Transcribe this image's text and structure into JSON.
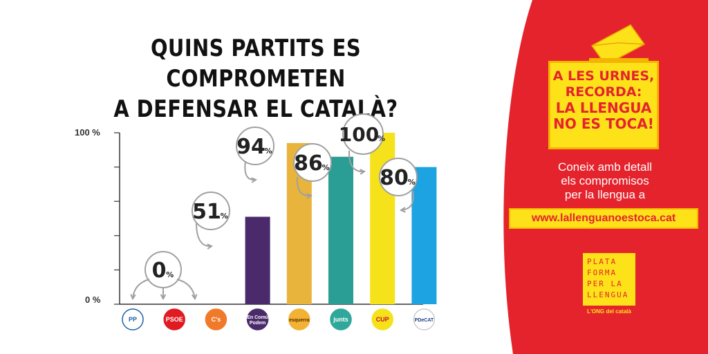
{
  "header": {
    "title_line1": "QUINS PARTITS ES COMPROMETEN",
    "title_line2": "A DEFENSAR EL CATALÀ?"
  },
  "chart_data": {
    "type": "bar",
    "categories": [
      "PP",
      "PSOE",
      "C's",
      "En Comú Podem",
      "esquerra",
      "junts",
      "CUP",
      "PDeCAT"
    ],
    "values": [
      0,
      0,
      0,
      51,
      94,
      86,
      100,
      80
    ],
    "bar_colors": [
      "#ffffff",
      "#ffffff",
      "#ffffff",
      "#4a2a6b",
      "#e8b43c",
      "#2a9d94",
      "#f5e21b",
      "#1ea3e2"
    ],
    "ylim": [
      0,
      100
    ],
    "ytick_labels": [
      "100 %",
      "0 %"
    ],
    "value_labels": [
      {
        "number": "0",
        "unit": "%"
      },
      {
        "number": "51",
        "unit": "%"
      },
      {
        "number": "94",
        "unit": "%"
      },
      {
        "number": "86",
        "unit": "%"
      },
      {
        "number": "100",
        "unit": "%"
      },
      {
        "number": "80",
        "unit": "%"
      }
    ],
    "logos": [
      {
        "text": "PP",
        "bg": "#ffffff",
        "fg": "#1d5fa8",
        "border": "#1d5fa8"
      },
      {
        "text": "PSOE",
        "bg": "#e01b22",
        "fg": "#ffffff",
        "border": "#e01b22"
      },
      {
        "text": "C's",
        "bg": "#f07a2a",
        "fg": "#ffffff",
        "border": "#f07a2a"
      },
      {
        "text": "En Comú Podem",
        "bg": "#4a2a6b",
        "fg": "#ffffff",
        "border": "#4a2a6b"
      },
      {
        "text": "esquerra",
        "bg": "#f2b233",
        "fg": "#5a2a00",
        "border": "#f2b233"
      },
      {
        "text": "junts",
        "bg": "#2fa89b",
        "fg": "#ffffff",
        "border": "#2fa89b"
      },
      {
        "text": "CUP",
        "bg": "#f5e21b",
        "fg": "#c8102e",
        "border": "#f5e21b"
      },
      {
        "text": "PDeCAT",
        "bg": "#ffffff",
        "fg": "#1b3a8c",
        "border": "#cccccc"
      }
    ]
  },
  "sidebar": {
    "slogan": [
      "A LES URNES,",
      "RECORDA:",
      "LA LLENGUA",
      "NO ES TOCA!"
    ],
    "info": [
      "Coneix amb detall",
      "els compromisos",
      "per la llengua a"
    ],
    "url": "www.lallenguanoestoca.cat",
    "brand_lines": [
      "PLATA",
      "FORMA",
      "PER LA",
      "LLENGUA"
    ],
    "tagline": "L'ONG del català"
  },
  "colors": {
    "panel_red": "#e5232d",
    "accent_yellow": "#fde21a"
  },
  "icons": [
    "ballot-envelope-icon"
  ]
}
